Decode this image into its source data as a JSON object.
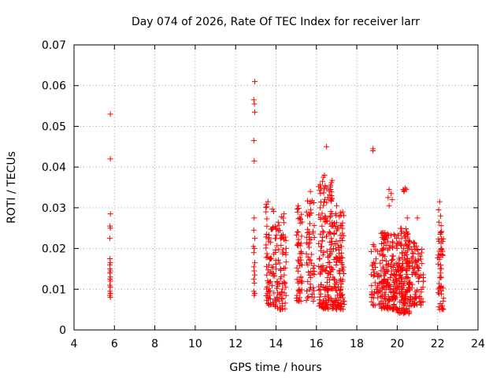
{
  "chart_data": {
    "type": "scatter",
    "title": "Day 074 of 2026, Rate Of TEC Index for receiver larr",
    "xlabel": "GPS time / hours",
    "ylabel": "ROTI / TECUs",
    "xlim": [
      4,
      24
    ],
    "ylim": [
      0,
      0.07
    ],
    "xticks": [
      4,
      6,
      8,
      10,
      12,
      14,
      16,
      18,
      20,
      22,
      24
    ],
    "xtick_labels": [
      "4",
      "6",
      "8",
      "10",
      "12",
      "14",
      "16",
      "18",
      "20",
      "22",
      "24"
    ],
    "yticks": [
      0,
      0.01,
      0.02,
      0.03,
      0.04,
      0.05,
      0.06,
      0.07
    ],
    "ytick_labels": [
      "0",
      "0.01",
      "0.02",
      "0.03",
      "0.04",
      "0.05",
      "0.06",
      "0.07"
    ],
    "grid": true,
    "marker": "+",
    "color": "#ff0000",
    "series": [
      {
        "name": "ROTI",
        "points": [
          [
            5.8,
            0.053
          ],
          [
            5.8,
            0.042
          ],
          [
            5.8,
            0.0285
          ],
          [
            5.78,
            0.0255
          ],
          [
            5.8,
            0.025
          ],
          [
            5.77,
            0.0225
          ],
          [
            5.78,
            0.0175
          ],
          [
            5.8,
            0.0165
          ],
          [
            5.77,
            0.016
          ],
          [
            5.78,
            0.015
          ],
          [
            5.8,
            0.0145
          ],
          [
            5.77,
            0.014
          ],
          [
            5.8,
            0.013
          ],
          [
            5.78,
            0.0125
          ],
          [
            5.8,
            0.012
          ],
          [
            5.77,
            0.011
          ],
          [
            5.8,
            0.0105
          ],
          [
            5.78,
            0.0095
          ],
          [
            5.8,
            0.009
          ],
          [
            5.77,
            0.0085
          ],
          [
            5.8,
            0.008
          ],
          [
            12.95,
            0.061
          ],
          [
            12.9,
            0.0565
          ],
          [
            12.93,
            0.0555
          ],
          [
            12.95,
            0.0535
          ],
          [
            12.9,
            0.0465
          ],
          [
            12.92,
            0.0415
          ],
          [
            12.92,
            0.0275
          ],
          [
            12.9,
            0.0245
          ],
          [
            12.95,
            0.0225
          ],
          [
            12.88,
            0.0205
          ],
          [
            12.93,
            0.02
          ],
          [
            12.9,
            0.019
          ],
          [
            12.95,
            0.0165
          ],
          [
            12.9,
            0.0155
          ],
          [
            12.92,
            0.0145
          ],
          [
            12.95,
            0.0135
          ],
          [
            12.9,
            0.0125
          ],
          [
            12.93,
            0.0115
          ],
          [
            12.9,
            0.0095
          ],
          [
            12.95,
            0.009
          ],
          [
            12.92,
            0.0085
          ],
          [
            19.6,
            0.0345
          ],
          [
            19.7,
            0.0335
          ],
          [
            19.55,
            0.0325
          ],
          [
            19.75,
            0.032
          ],
          [
            19.6,
            0.0305
          ],
          [
            20.3,
            0.0345
          ],
          [
            20.35,
            0.0342
          ],
          [
            20.4,
            0.0348
          ],
          [
            20.45,
            0.0345
          ],
          [
            20.33,
            0.034
          ],
          [
            16.2,
            0.0335
          ],
          [
            15.7,
            0.034
          ],
          [
            16.4,
            0.038
          ],
          [
            16.3,
            0.0365
          ],
          [
            16.35,
            0.0375
          ],
          [
            16.5,
            0.045
          ],
          [
            18.8,
            0.0445
          ],
          [
            18.8,
            0.044
          ],
          [
            22.1,
            0.0315
          ],
          [
            22.05,
            0.0295
          ],
          [
            22.15,
            0.028
          ],
          [
            13.6,
            0.0315
          ],
          [
            14.4,
            0.0285
          ],
          [
            15.1,
            0.0305
          ],
          [
            15.7,
            0.0315
          ],
          [
            17.3,
            0.029
          ],
          [
            17.0,
            0.0305
          ],
          [
            21.0,
            0.0275
          ],
          [
            20.5,
            0.0275
          ]
        ],
        "clusters": [
          {
            "x_range": [
              13.5,
              13.9
            ],
            "y_range": [
              0.006,
              0.031
            ],
            "count": 70
          },
          {
            "x_range": [
              13.9,
              14.5
            ],
            "y_range": [
              0.005,
              0.028
            ],
            "count": 90
          },
          {
            "x_range": [
              15.0,
              15.3
            ],
            "y_range": [
              0.007,
              0.03
            ],
            "count": 55
          },
          {
            "x_range": [
              15.5,
              15.9
            ],
            "y_range": [
              0.007,
              0.033
            ],
            "count": 60
          },
          {
            "x_range": [
              16.1,
              16.8
            ],
            "y_range": [
              0.005,
              0.037
            ],
            "count": 160
          },
          {
            "x_range": [
              16.8,
              17.4
            ],
            "y_range": [
              0.005,
              0.029
            ],
            "count": 120
          },
          {
            "x_range": [
              18.7,
              19.2
            ],
            "y_range": [
              0.006,
              0.021
            ],
            "count": 50
          },
          {
            "x_range": [
              19.2,
              20.0
            ],
            "y_range": [
              0.005,
              0.024
            ],
            "count": 170
          },
          {
            "x_range": [
              20.0,
              20.6
            ],
            "y_range": [
              0.004,
              0.025
            ],
            "count": 150
          },
          {
            "x_range": [
              20.6,
              21.0
            ],
            "y_range": [
              0.006,
              0.022
            ],
            "count": 60
          },
          {
            "x_range": [
              21.0,
              21.3
            ],
            "y_range": [
              0.006,
              0.02
            ],
            "count": 30
          },
          {
            "x_range": [
              22.0,
              22.3
            ],
            "y_range": [
              0.005,
              0.028
            ],
            "count": 55
          }
        ]
      }
    ]
  }
}
